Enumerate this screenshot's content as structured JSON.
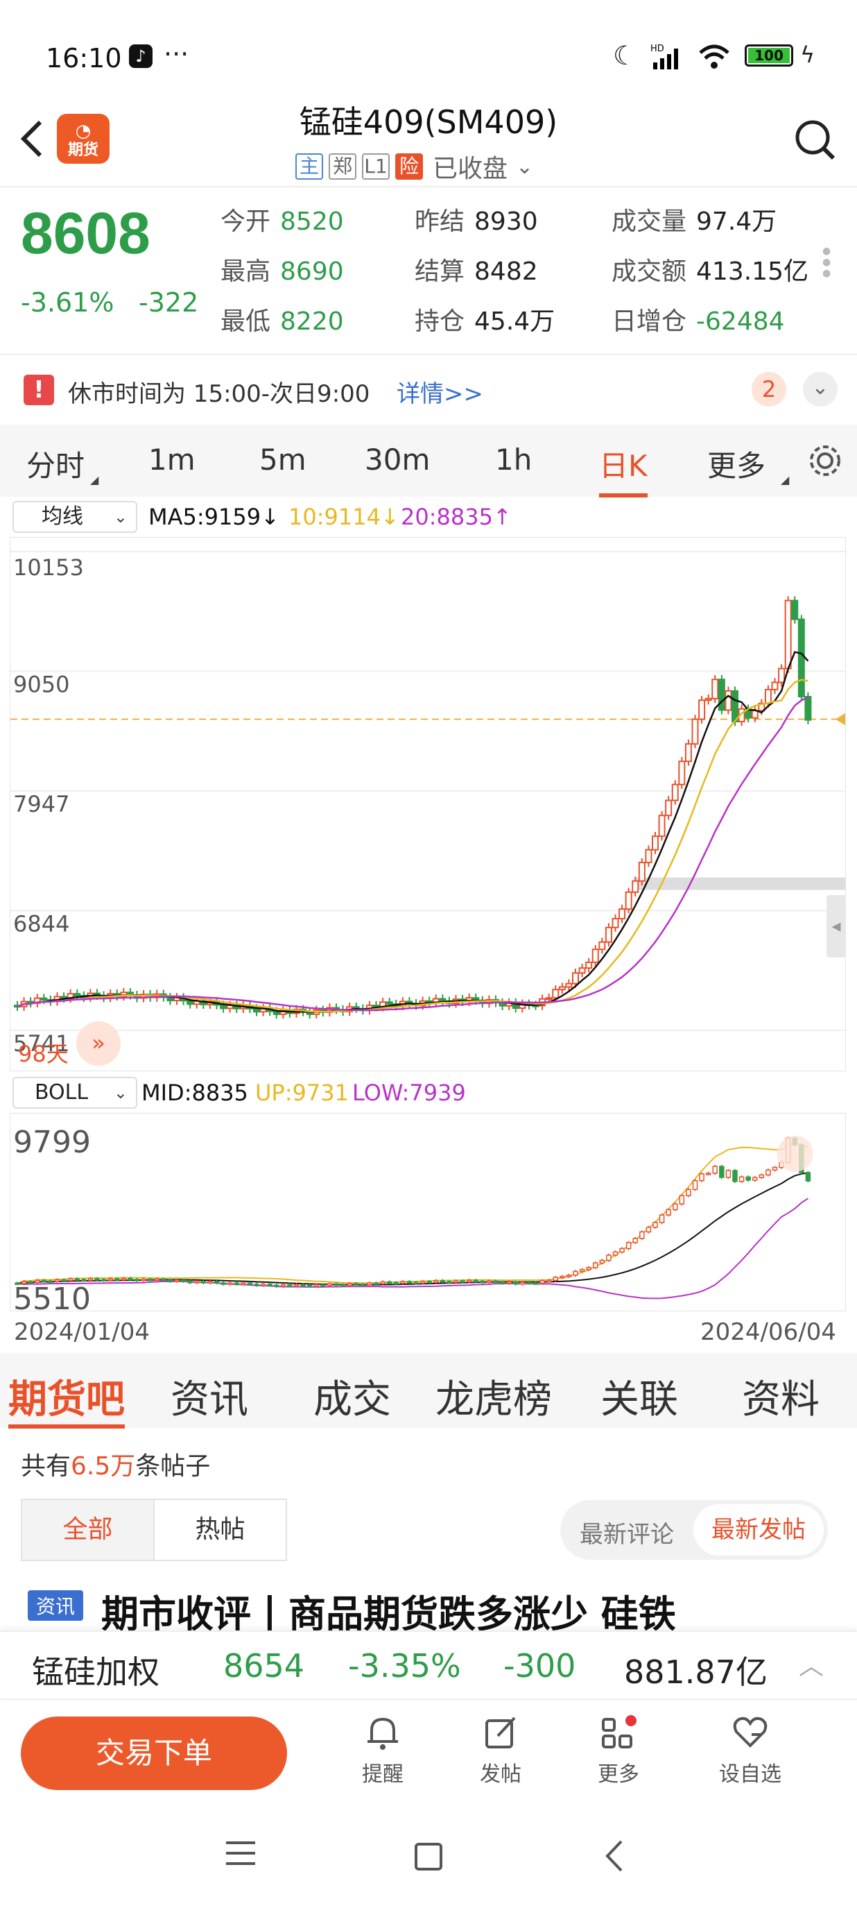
{
  "status_bar": {
    "time": "16:10",
    "dots": "···",
    "battery": "100"
  },
  "header": {
    "title": "锰硅409(SM409)",
    "badges": [
      "主",
      "郑",
      "L1",
      "险"
    ],
    "status": "已收盘",
    "logo_text": "期货"
  },
  "quote": {
    "price": "8608",
    "pct": "-3.61%",
    "change": "-322",
    "cells": [
      {
        "label": "今开",
        "value": "8520",
        "color": "green"
      },
      {
        "label": "昨结",
        "value": "8930",
        "color": "dark"
      },
      {
        "label": "成交量",
        "value": "97.4万",
        "color": "dark"
      },
      {
        "label": "最高",
        "value": "8690",
        "color": "green"
      },
      {
        "label": "结算",
        "value": "8482",
        "color": "dark"
      },
      {
        "label": "成交额",
        "value": "413.15亿",
        "color": "dark"
      },
      {
        "label": "最低",
        "value": "8220",
        "color": "green"
      },
      {
        "label": "持仓",
        "value": "45.4万",
        "color": "dark"
      },
      {
        "label": "日增仓",
        "value": "-62484",
        "color": "green"
      }
    ]
  },
  "notice": {
    "text": "休市时间为 15:00-次日9:00",
    "link": "详情>>",
    "count": "2"
  },
  "chart_tabs": [
    "分时",
    "1m",
    "5m",
    "30m",
    "1h",
    "日K",
    "更多"
  ],
  "active_tab": "日K",
  "ma_bar": {
    "select": "均线",
    "ma5": "MA5:9159↓",
    "ma10": "10:9114↓",
    "ma20": "20:8835↑"
  },
  "chart_data": [
    {
      "type": "candlestick",
      "y_ticks": [
        "10153",
        "9050",
        "7947",
        "6844",
        "5741"
      ],
      "ylim": [
        5741,
        10153
      ],
      "last_price_line": 8608,
      "range_label": "98天",
      "series": [
        {
          "name": "MA5",
          "final": 9159
        },
        {
          "name": "10",
          "final": 9114
        },
        {
          "name": "20",
          "final": 8835
        }
      ]
    },
    {
      "type": "line",
      "indicator": "BOLL",
      "mid": "MID:8835",
      "up": "UP:9731",
      "low": "LOW:7939",
      "y_ticks": [
        "9799",
        "5510"
      ],
      "x_ticks": [
        "2024/01/04",
        "2024/06/04"
      ]
    }
  ],
  "boll_select": "BOLL",
  "section_tabs": [
    "期货吧",
    "资讯",
    "成交",
    "龙虎榜",
    "关联",
    "资料"
  ],
  "posts": {
    "prefix": "共有",
    "count": "6.5万",
    "suffix": "条帖子",
    "filter_tabs": [
      "全部",
      "热帖"
    ],
    "sort_tabs": [
      "最新评论",
      "最新发帖"
    ],
    "first_tag": "资讯",
    "first_title": "期市收评丨商品期货跌多涨少 硅铁"
  },
  "index_bar": {
    "name": "锰硅加权",
    "price": "8654",
    "pct": "-3.35%",
    "change": "-300",
    "amount": "881.87亿"
  },
  "bottom": {
    "trade": "交易下单",
    "items": [
      "提醒",
      "发帖",
      "更多",
      "设自选"
    ]
  },
  "colors": {
    "up": "#e8522b",
    "down": "#2e9d4a",
    "accent": "#e8522b",
    "ma5": "#111111",
    "ma10": "#e8b820",
    "ma20": "#b833c8"
  }
}
